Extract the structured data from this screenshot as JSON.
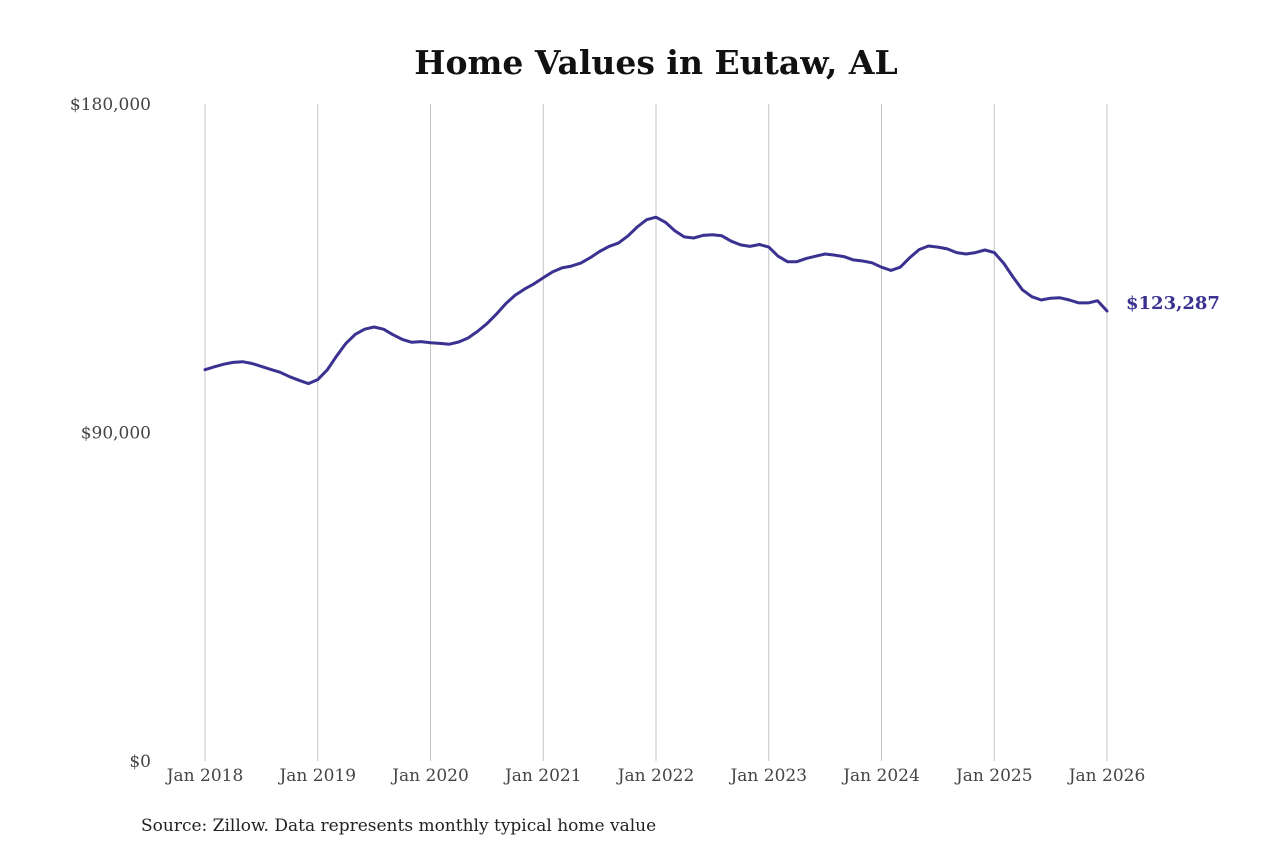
{
  "chart_data": {
    "type": "line",
    "title": "Home Values in Eutaw, AL",
    "xlabel": "",
    "ylabel": "",
    "ylim": [
      0,
      180000
    ],
    "y_ticks": [
      "$0",
      "$90,000",
      "$180,000"
    ],
    "y_tick_values": [
      0,
      90000,
      180000
    ],
    "x_ticks": [
      "Jan 2018",
      "Jan 2019",
      "Jan 2020",
      "Jan 2021",
      "Jan 2022",
      "Jan 2023",
      "Jan 2024",
      "Jan 2025",
      "Jan 2026"
    ],
    "xlim": [
      "2018-01",
      "2026-01"
    ],
    "grid": "vertical",
    "line_color": "#3b3191",
    "end_label": "$123,287",
    "series": [
      {
        "name": "",
        "x": [
          "2018-01",
          "2018-02",
          "2018-03",
          "2018-04",
          "2018-05",
          "2018-06",
          "2018-07",
          "2018-08",
          "2018-09",
          "2018-10",
          "2018-11",
          "2018-12",
          "2019-01",
          "2019-02",
          "2019-03",
          "2019-04",
          "2019-05",
          "2019-06",
          "2019-07",
          "2019-08",
          "2019-09",
          "2019-10",
          "2019-11",
          "2019-12",
          "2020-01",
          "2020-02",
          "2020-03",
          "2020-04",
          "2020-05",
          "2020-06",
          "2020-07",
          "2020-08",
          "2020-09",
          "2020-10",
          "2020-11",
          "2020-12",
          "2021-01",
          "2021-02",
          "2021-03",
          "2021-04",
          "2021-05",
          "2021-06",
          "2021-07",
          "2021-08",
          "2021-09",
          "2021-10",
          "2021-11",
          "2021-12",
          "2022-01",
          "2022-02",
          "2022-03",
          "2022-04",
          "2022-05",
          "2022-06",
          "2022-07",
          "2022-08",
          "2022-09",
          "2022-10",
          "2022-11",
          "2022-12",
          "2023-01",
          "2023-02",
          "2023-03",
          "2023-04",
          "2023-05",
          "2023-06",
          "2023-07",
          "2023-08",
          "2023-09",
          "2023-10",
          "2023-11",
          "2023-12",
          "2024-01",
          "2024-02",
          "2024-03",
          "2024-04",
          "2024-05",
          "2024-06",
          "2024-07",
          "2024-08",
          "2024-09",
          "2024-10",
          "2024-11",
          "2024-12",
          "2025-01",
          "2025-02",
          "2025-03",
          "2025-04",
          "2025-05",
          "2025-06",
          "2025-07",
          "2025-08",
          "2025-09",
          "2025-10",
          "2025-11",
          "2025-12",
          "2026-01"
        ],
        "values": [
          107200,
          108000,
          108700,
          109200,
          109400,
          108900,
          108100,
          107300,
          106500,
          105300,
          104300,
          103400,
          104500,
          107100,
          110900,
          114400,
          116900,
          118300,
          118900,
          118300,
          116800,
          115500,
          114700,
          114900,
          114600,
          114400,
          114200,
          114800,
          115900,
          117700,
          119800,
          122400,
          125300,
          127600,
          129300,
          130700,
          132400,
          134000,
          135100,
          135600,
          136400,
          137900,
          139600,
          141000,
          141900,
          143800,
          146300,
          148300,
          149000,
          147600,
          145300,
          143600,
          143300,
          144000,
          144200,
          143900,
          142400,
          141400,
          141000,
          141500,
          140800,
          138300,
          136800,
          136800,
          137700,
          138300,
          138900,
          138600,
          138200,
          137300,
          137000,
          136500,
          135300,
          134400,
          135300,
          137900,
          140100,
          141100,
          140800,
          140300,
          139300,
          138900,
          139300,
          140000,
          139300,
          136400,
          132600,
          129100,
          127200,
          126300,
          126800,
          126900,
          126300,
          125500,
          125500,
          126100,
          123287
        ]
      }
    ]
  },
  "footer": {
    "source": "Source: Zillow. Data represents monthly typical home value"
  }
}
